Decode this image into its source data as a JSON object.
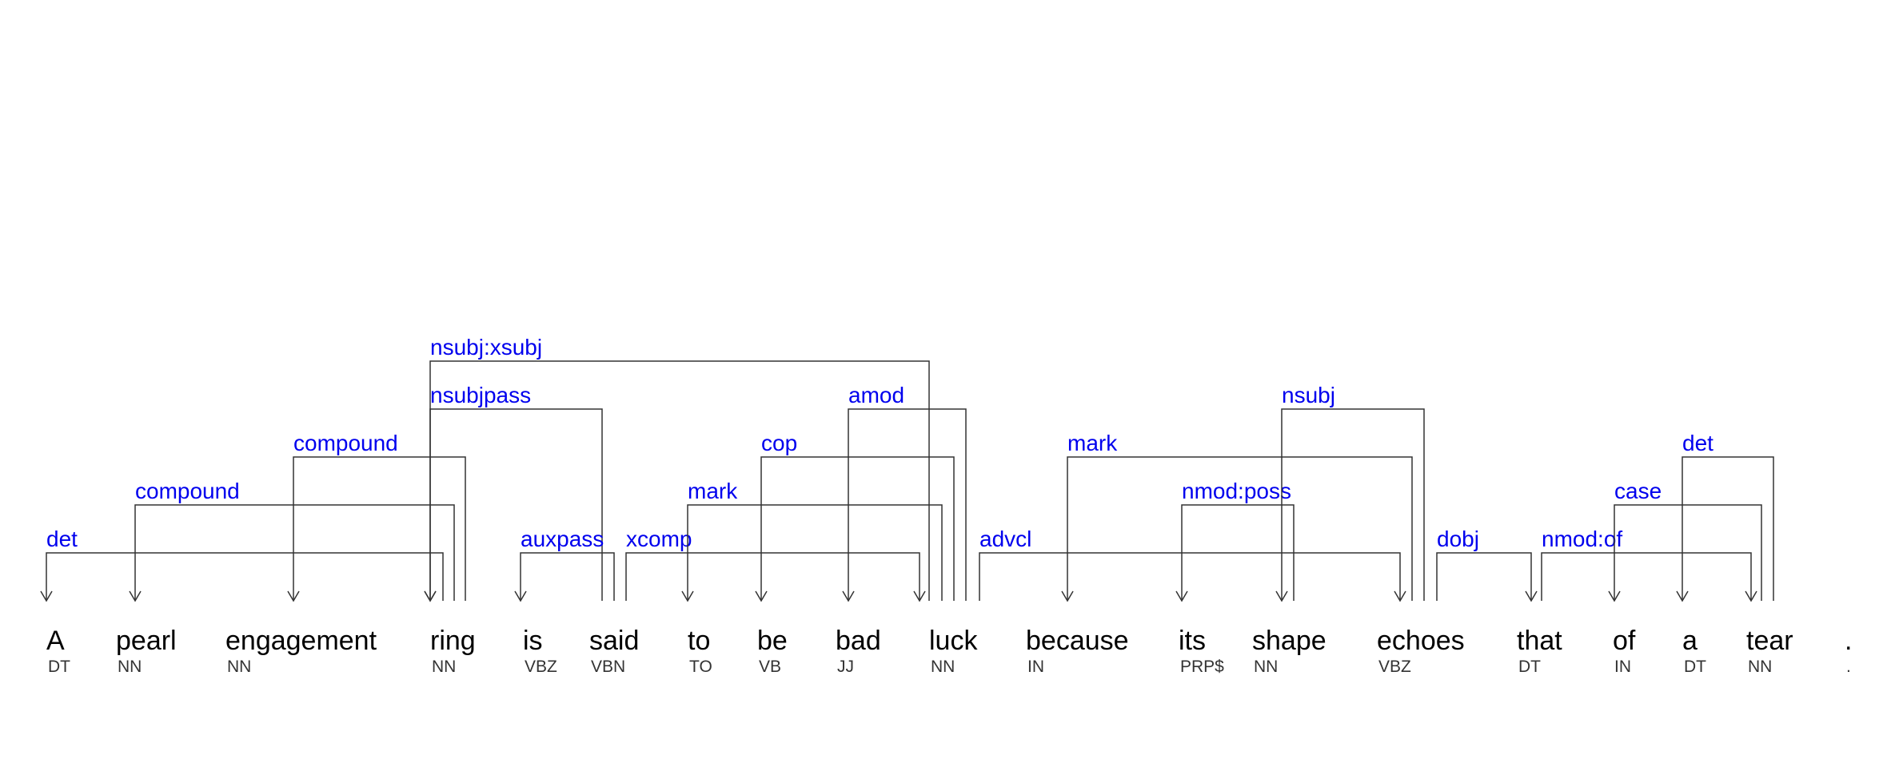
{
  "tokens": [
    {
      "word": "A",
      "pos": "DT"
    },
    {
      "word": "pearl",
      "pos": "NN"
    },
    {
      "word": "engagement",
      "pos": "NN"
    },
    {
      "word": "ring",
      "pos": "NN"
    },
    {
      "word": "is",
      "pos": "VBZ"
    },
    {
      "word": "said",
      "pos": "VBN"
    },
    {
      "word": "to",
      "pos": "TO"
    },
    {
      "word": "be",
      "pos": "VB"
    },
    {
      "word": "bad",
      "pos": "JJ"
    },
    {
      "word": "luck",
      "pos": "NN"
    },
    {
      "word": "because",
      "pos": "IN"
    },
    {
      "word": "its",
      "pos": "PRP$"
    },
    {
      "word": "shape",
      "pos": "NN"
    },
    {
      "word": "echoes",
      "pos": "VBZ"
    },
    {
      "word": "that",
      "pos": "DT"
    },
    {
      "word": "of",
      "pos": "IN"
    },
    {
      "word": "a",
      "pos": "DT"
    },
    {
      "word": "tear",
      "pos": "NN"
    },
    {
      "word": ".",
      "pos": "."
    }
  ],
  "arcs": [
    {
      "label": "det",
      "head": 3,
      "dep": 0
    },
    {
      "label": "compound",
      "head": 3,
      "dep": 1
    },
    {
      "label": "compound",
      "head": 3,
      "dep": 2
    },
    {
      "label": "nsubjpass",
      "head": 5,
      "dep": 3
    },
    {
      "label": "nsubj:xsubj",
      "head": 9,
      "dep": 3
    },
    {
      "label": "auxpass",
      "head": 5,
      "dep": 4
    },
    {
      "label": "xcomp",
      "head": 5,
      "dep": 9
    },
    {
      "label": "mark",
      "head": 9,
      "dep": 6
    },
    {
      "label": "cop",
      "head": 9,
      "dep": 7
    },
    {
      "label": "amod",
      "head": 9,
      "dep": 8
    },
    {
      "label": "advcl",
      "head": 5,
      "dep": 13
    },
    {
      "label": "mark",
      "head": 13,
      "dep": 10
    },
    {
      "label": "nmod:poss",
      "head": 12,
      "dep": 11
    },
    {
      "label": "nsubj",
      "head": 13,
      "dep": 12
    },
    {
      "label": "dobj",
      "head": 13,
      "dep": 14
    },
    {
      "label": "nmod:of",
      "head": 14,
      "dep": 17
    },
    {
      "label": "case",
      "head": 17,
      "dep": 15
    },
    {
      "label": "det",
      "head": 17,
      "dep": 16
    }
  ]
}
